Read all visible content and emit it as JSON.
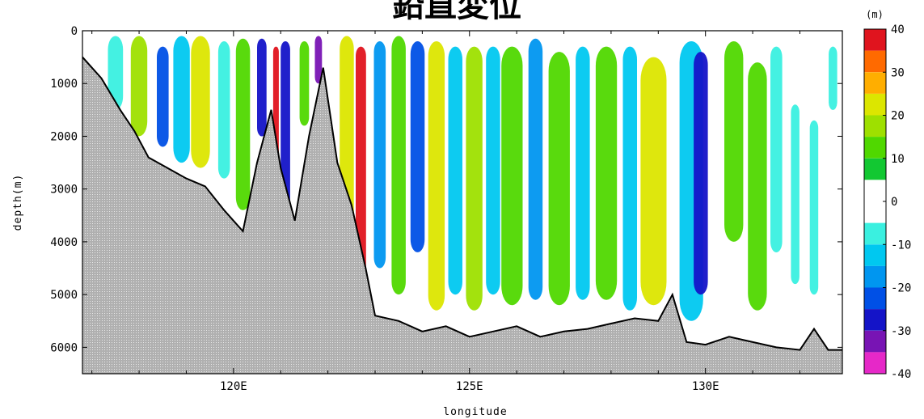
{
  "chart_data": {
    "type": "heatmap",
    "title": "鉛直変位",
    "xlabel": "longitude",
    "ylabel": "depth(m)",
    "xlim": [
      116.8,
      132.9
    ],
    "ylim": [
      0,
      6500
    ],
    "x_ticks": [
      120,
      125,
      130
    ],
    "x_tick_labels": [
      "120E",
      "125E",
      "130E"
    ],
    "y_ticks": [
      0,
      1000,
      2000,
      3000,
      4000,
      5000,
      6000
    ],
    "y_tick_labels": [
      "0",
      "1000",
      "2000",
      "3000",
      "4000",
      "5000",
      "6000"
    ],
    "colorbar": {
      "unit": "(m)",
      "ticks": [
        40,
        30,
        20,
        10,
        0,
        -10,
        -20,
        -30,
        -40
      ],
      "tick_labels": [
        "40",
        "30",
        "20",
        "10",
        "0",
        "-10",
        "-20",
        "-30",
        "-40"
      ],
      "levels": [
        {
          "min": 35,
          "max": 40,
          "color": "#e0141e"
        },
        {
          "min": 30,
          "max": 35,
          "color": "#ff6a00"
        },
        {
          "min": 25,
          "max": 30,
          "color": "#ffae00"
        },
        {
          "min": 20,
          "max": 25,
          "color": "#dce600"
        },
        {
          "min": 15,
          "max": 20,
          "color": "#9ee000"
        },
        {
          "min": 10,
          "max": 15,
          "color": "#50d800"
        },
        {
          "min": 5,
          "max": 10,
          "color": "#12c832"
        },
        {
          "min": -5,
          "max": 5,
          "color": "#ffffff"
        },
        {
          "min": -10,
          "max": -5,
          "color": "#3af0e0"
        },
        {
          "min": -15,
          "max": -10,
          "color": "#00c8f0"
        },
        {
          "min": -20,
          "max": -15,
          "color": "#0096f0"
        },
        {
          "min": -25,
          "max": -20,
          "color": "#0050e6"
        },
        {
          "min": -30,
          "max": -25,
          "color": "#1414c8"
        },
        {
          "min": -35,
          "max": -30,
          "color": "#7814b4"
        },
        {
          "min": -40,
          "max": -35,
          "color": "#e628c8"
        }
      ]
    },
    "bathymetry": [
      [
        116.8,
        500
      ],
      [
        117.2,
        900
      ],
      [
        117.6,
        1500
      ],
      [
        117.9,
        1900
      ],
      [
        118.2,
        2400
      ],
      [
        118.6,
        2600
      ],
      [
        119.0,
        2800
      ],
      [
        119.4,
        2950
      ],
      [
        119.8,
        3400
      ],
      [
        120.2,
        3800
      ],
      [
        120.5,
        2500
      ],
      [
        120.8,
        1500
      ],
      [
        121.0,
        2600
      ],
      [
        121.3,
        3600
      ],
      [
        121.6,
        2000
      ],
      [
        121.9,
        700
      ],
      [
        122.2,
        2500
      ],
      [
        122.5,
        3300
      ],
      [
        122.8,
        4500
      ],
      [
        123.0,
        5400
      ],
      [
        123.5,
        5500
      ],
      [
        124.0,
        5700
      ],
      [
        124.5,
        5600
      ],
      [
        125.0,
        5800
      ],
      [
        125.5,
        5700
      ],
      [
        126.0,
        5600
      ],
      [
        126.5,
        5800
      ],
      [
        127.0,
        5700
      ],
      [
        127.5,
        5650
      ],
      [
        128.0,
        5550
      ],
      [
        128.5,
        5450
      ],
      [
        129.0,
        5500
      ],
      [
        129.3,
        5000
      ],
      [
        129.6,
        5900
      ],
      [
        130.0,
        5950
      ],
      [
        130.5,
        5800
      ],
      [
        131.0,
        5900
      ],
      [
        131.5,
        6000
      ],
      [
        132.0,
        6050
      ],
      [
        132.3,
        5650
      ],
      [
        132.6,
        6050
      ],
      [
        132.9,
        6050
      ]
    ],
    "bands": [
      {
        "x": 117.5,
        "w": 0.32,
        "value": -10,
        "top": 100,
        "depth": 1500
      },
      {
        "x": 118.0,
        "w": 0.35,
        "value": 15,
        "top": 100,
        "depth": 2000
      },
      {
        "x": 118.5,
        "w": 0.25,
        "value": -25,
        "top": 300,
        "depth": 2200
      },
      {
        "x": 118.9,
        "w": 0.35,
        "value": -12,
        "top": 100,
        "depth": 2500
      },
      {
        "x": 119.3,
        "w": 0.4,
        "value": 20,
        "top": 100,
        "depth": 2600
      },
      {
        "x": 119.8,
        "w": 0.25,
        "value": -10,
        "top": 200,
        "depth": 2800
      },
      {
        "x": 120.2,
        "w": 0.3,
        "value": 12,
        "top": 150,
        "depth": 3400
      },
      {
        "x": 120.6,
        "w": 0.2,
        "value": -28,
        "top": 150,
        "depth": 2000
      },
      {
        "x": 120.9,
        "w": 0.12,
        "value": 35,
        "top": 300,
        "depth": 2800
      },
      {
        "x": 121.1,
        "w": 0.2,
        "value": -30,
        "top": 200,
        "depth": 3400
      },
      {
        "x": 121.5,
        "w": 0.2,
        "value": 12,
        "top": 200,
        "depth": 1800
      },
      {
        "x": 121.8,
        "w": 0.15,
        "value": -35,
        "top": 100,
        "depth": 1000
      },
      {
        "x": 122.4,
        "w": 0.3,
        "value": 22,
        "top": 100,
        "depth": 4800
      },
      {
        "x": 122.7,
        "w": 0.22,
        "value": 40,
        "top": 300,
        "depth": 4900
      },
      {
        "x": 123.1,
        "w": 0.25,
        "value": -18,
        "top": 200,
        "depth": 4500
      },
      {
        "x": 123.5,
        "w": 0.3,
        "value": 12,
        "top": 100,
        "depth": 5000
      },
      {
        "x": 123.9,
        "w": 0.3,
        "value": -22,
        "top": 200,
        "depth": 4200
      },
      {
        "x": 124.3,
        "w": 0.35,
        "value": 24,
        "top": 200,
        "depth": 5300
      },
      {
        "x": 124.7,
        "w": 0.3,
        "value": -12,
        "top": 300,
        "depth": 5000
      },
      {
        "x": 125.1,
        "w": 0.35,
        "value": 18,
        "top": 300,
        "depth": 5300
      },
      {
        "x": 125.5,
        "w": 0.3,
        "value": -15,
        "top": 300,
        "depth": 5000
      },
      {
        "x": 125.9,
        "w": 0.45,
        "value": 14,
        "top": 300,
        "depth": 5200
      },
      {
        "x": 126.4,
        "w": 0.3,
        "value": -18,
        "top": 150,
        "depth": 5100
      },
      {
        "x": 126.9,
        "w": 0.45,
        "value": 13,
        "top": 400,
        "depth": 5200
      },
      {
        "x": 127.4,
        "w": 0.3,
        "value": -12,
        "top": 300,
        "depth": 5100
      },
      {
        "x": 127.9,
        "w": 0.45,
        "value": 14,
        "top": 300,
        "depth": 5100
      },
      {
        "x": 128.4,
        "w": 0.3,
        "value": -12,
        "top": 300,
        "depth": 5300
      },
      {
        "x": 128.9,
        "w": 0.55,
        "value": 22,
        "top": 500,
        "depth": 5200
      },
      {
        "x": 129.7,
        "w": 0.5,
        "value": -12,
        "top": 200,
        "depth": 5500
      },
      {
        "x": 129.9,
        "w": 0.3,
        "value": -28,
        "top": 400,
        "depth": 5000
      },
      {
        "x": 130.6,
        "w": 0.4,
        "value": 13,
        "top": 200,
        "depth": 4000
      },
      {
        "x": 131.1,
        "w": 0.4,
        "value": 13,
        "top": 600,
        "depth": 5300
      },
      {
        "x": 131.5,
        "w": 0.25,
        "value": -10,
        "top": 300,
        "depth": 4200
      },
      {
        "x": 131.9,
        "w": 0.18,
        "value": -10,
        "top": 1400,
        "depth": 4800
      },
      {
        "x": 132.3,
        "w": 0.18,
        "value": -10,
        "top": 1700,
        "depth": 5000
      },
      {
        "x": 132.7,
        "w": 0.18,
        "value": -10,
        "top": 300,
        "depth": 1500
      }
    ]
  }
}
